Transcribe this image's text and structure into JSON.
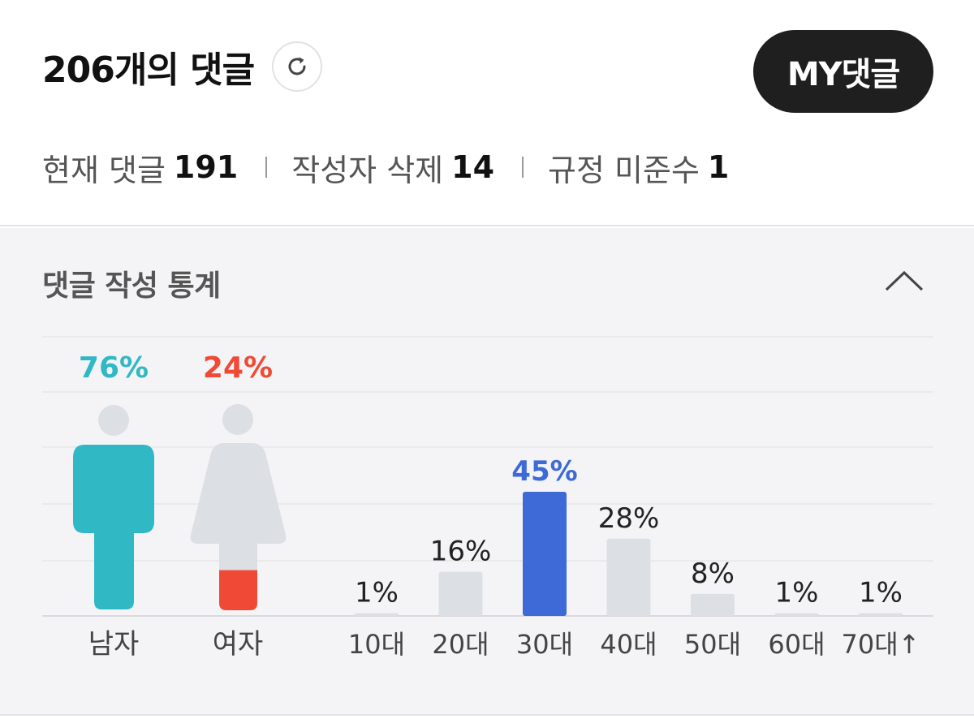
{
  "header": {
    "title": "206개의 댓글",
    "my_button_label": "MY댓글"
  },
  "counts": [
    {
      "label": "현재 댓글",
      "value": "191"
    },
    {
      "label": "작성자 삭제",
      "value": "14"
    },
    {
      "label": "규정 미준수",
      "value": "1"
    }
  ],
  "stats": {
    "title": "댓글 작성 통계"
  },
  "colors": {
    "male": "#30b8c4",
    "female": "#f04a36",
    "highlight_bar": "#3d6ad6",
    "bar": "#dcdfe3",
    "figure_base": "#dcdfe3"
  },
  "icons": {
    "refresh": "refresh-icon",
    "collapse": "chevron-up-icon"
  },
  "chart_data": [
    {
      "type": "pictogram",
      "categories": [
        "남자",
        "여자"
      ],
      "values": [
        76,
        24
      ],
      "labels": [
        "76%",
        "24%"
      ],
      "unit": "%"
    },
    {
      "type": "bar",
      "categories": [
        "10대",
        "20대",
        "30대",
        "40대",
        "50대",
        "60대",
        "70대↑"
      ],
      "values": [
        1,
        16,
        45,
        28,
        8,
        1,
        1
      ],
      "labels": [
        "1%",
        "16%",
        "45%",
        "28%",
        "8%",
        "1%",
        "1%"
      ],
      "highlight_index": 2,
      "ylim": [
        0,
        45
      ],
      "grid": true,
      "unit": "%"
    }
  ]
}
